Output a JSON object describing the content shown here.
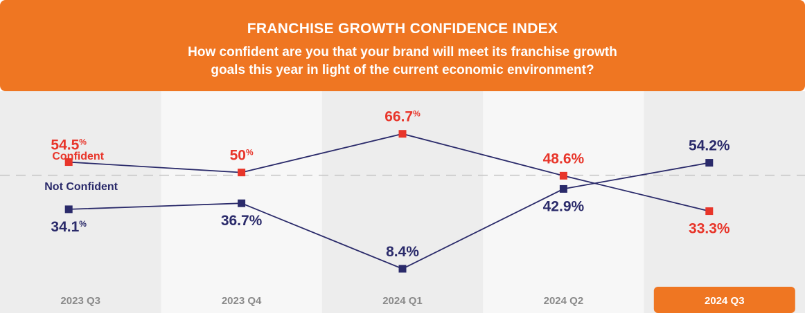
{
  "header": {
    "title": "FRANCHISE GROWTH CONFIDENCE INDEX",
    "subtitle_line1": "How confident are you that your brand will meet its franchise growth",
    "subtitle_line2": "goals this year in light of the current economic environment?"
  },
  "colors": {
    "accent": "#ef7622",
    "confident": "#e8352a",
    "not_confident": "#2a2a6a",
    "band_dark": "#ededed",
    "band_light": "#f7f7f7",
    "axis_text": "#8a8a8a"
  },
  "chart_data": {
    "type": "line",
    "categories": [
      "2023 Q3",
      "2023 Q4",
      "2024 Q1",
      "2024 Q2",
      "2024 Q3"
    ],
    "highlighted_category": "2024 Q3",
    "series": [
      {
        "name": "Confident",
        "values": [
          54.5,
          50,
          66.7,
          48.6,
          33.3
        ],
        "labels": [
          {
            "num": "54.5",
            "pct": "%",
            "pos": "above"
          },
          {
            "num": "50",
            "pct": "%",
            "pos": "above"
          },
          {
            "num": "66.7",
            "pct": "%",
            "pos": "above"
          },
          {
            "num": "48.6%",
            "pct": "",
            "pos": "above"
          },
          {
            "num": "33.3%",
            "pct": "",
            "pos": "below"
          }
        ]
      },
      {
        "name": "Not Confident",
        "values": [
          34.1,
          36.7,
          8.4,
          42.9,
          54.2
        ],
        "labels": [
          {
            "num": "34.1",
            "pct": "%",
            "pos": "below"
          },
          {
            "num": "36.7%",
            "pct": "",
            "pos": "below"
          },
          {
            "num": "8.4%",
            "pct": "",
            "pos": "above"
          },
          {
            "num": "42.9%",
            "pct": "",
            "pos": "below"
          },
          {
            "num": "54.2%",
            "pct": "",
            "pos": "above"
          }
        ]
      }
    ],
    "reference_line": 50,
    "reference_style": "dashed",
    "legend_placement": "left"
  }
}
